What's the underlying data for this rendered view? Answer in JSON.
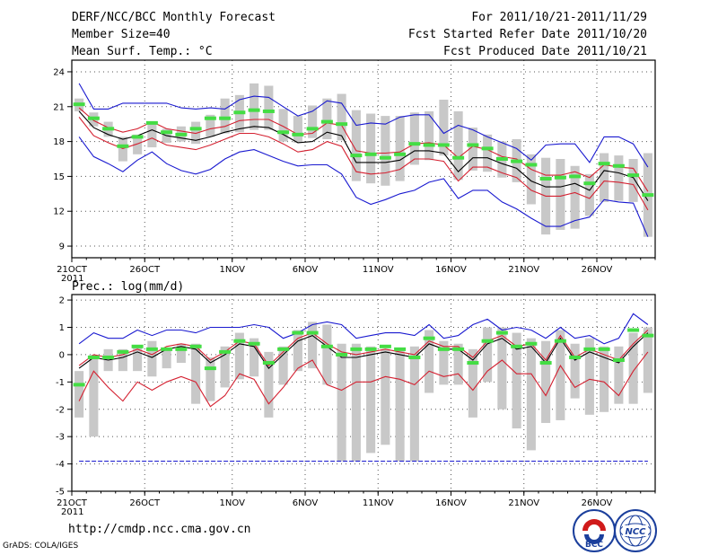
{
  "header": {
    "title": "DERF/NCC/BCC Monthly Forecast",
    "member_size": "Member Size=40",
    "variable": "Mean Surf. Temp.: °C",
    "period": "For 2011/10/21-2011/11/29",
    "started": "Fcst Started Refer Date 2011/10/20",
    "produced": "Fcst Produced Date 2011/10/21"
  },
  "footer": {
    "url": "http://cmdp.ncc.cma.gov.cn",
    "credit": "GrADS: COLA/IGES",
    "logo_left_text": "BCC",
    "logo_right_text": "NCC"
  },
  "colors": {
    "mean": "#000000",
    "spread": "#d42030",
    "extreme": "#1a1ad0",
    "box": "#c8c8c8",
    "median": "#44dd44",
    "grid": "#555555"
  },
  "chart_data": [
    {
      "type": "line",
      "title": "Mean Surf. Temp.: °C",
      "x_start": "2011-10-21",
      "x_count": 40,
      "xtick_labels": [
        "21OCT\n2011",
        "26OCT",
        "1NOV",
        "6NOV",
        "11NOV",
        "16NOV",
        "21NOV",
        "26NOV"
      ],
      "xtick_index": [
        0,
        5,
        11,
        16,
        21,
        26,
        31,
        36
      ],
      "ylim": [
        8,
        25
      ],
      "yticks": [
        9,
        12,
        15,
        18,
        21,
        24
      ],
      "grid": true,
      "series": [
        {
          "name": "ensemble max",
          "color": "#1a1ad0",
          "values": [
            23.0,
            20.8,
            20.8,
            21.3,
            21.3,
            21.3,
            21.3,
            20.9,
            20.8,
            20.9,
            20.8,
            21.6,
            21.9,
            21.8,
            21.0,
            20.2,
            20.6,
            21.5,
            21.3,
            19.4,
            19.6,
            19.5,
            20.1,
            20.3,
            20.3,
            18.7,
            19.4,
            19.0,
            18.4,
            17.9,
            17.4,
            16.4,
            17.7,
            17.8,
            17.8,
            16.2,
            18.4,
            18.4,
            17.8,
            15.8
          ]
        },
        {
          "name": "mean + spread",
          "color": "#d42030",
          "values": [
            20.9,
            19.8,
            19.2,
            18.8,
            19.1,
            19.7,
            19.1,
            18.9,
            18.7,
            19.1,
            19.3,
            19.8,
            19.9,
            19.9,
            19.3,
            18.6,
            18.7,
            19.6,
            19.4,
            17.2,
            17.0,
            17.0,
            17.1,
            17.8,
            17.9,
            17.7,
            16.6,
            17.6,
            17.3,
            16.7,
            16.5,
            15.6,
            15.1,
            15.1,
            15.4,
            14.9,
            16.0,
            15.8,
            15.7,
            13.7
          ]
        },
        {
          "name": "ensemble mean",
          "color": "#000000",
          "values": [
            20.6,
            19.2,
            18.6,
            18.2,
            18.5,
            19.0,
            18.5,
            18.3,
            18.1,
            18.4,
            18.8,
            19.1,
            19.3,
            19.2,
            18.6,
            17.9,
            18.0,
            18.8,
            18.5,
            16.2,
            16.2,
            16.2,
            16.4,
            17.2,
            17.2,
            17.0,
            15.4,
            16.6,
            16.6,
            16.1,
            15.7,
            14.6,
            14.1,
            14.1,
            14.4,
            13.8,
            15.5,
            15.3,
            14.9,
            12.9
          ]
        },
        {
          "name": "mean - spread",
          "color": "#d42030",
          "values": [
            20.1,
            18.5,
            17.9,
            17.4,
            17.8,
            18.3,
            17.7,
            17.5,
            17.3,
            17.7,
            18.2,
            18.7,
            18.7,
            18.4,
            17.8,
            17.1,
            17.3,
            18.0,
            17.6,
            15.4,
            15.2,
            15.3,
            15.6,
            16.5,
            16.5,
            16.3,
            14.6,
            15.8,
            15.8,
            15.3,
            14.9,
            13.8,
            13.3,
            13.3,
            13.6,
            13.1,
            14.6,
            14.5,
            14.3,
            12.1
          ]
        },
        {
          "name": "ensemble min",
          "color": "#1a1ad0",
          "values": [
            18.4,
            16.7,
            16.1,
            15.4,
            16.4,
            17.1,
            16.1,
            15.5,
            15.2,
            15.6,
            16.5,
            17.1,
            17.3,
            16.8,
            16.3,
            15.9,
            16.0,
            16.0,
            15.2,
            13.2,
            12.6,
            13.0,
            13.5,
            13.8,
            14.5,
            14.8,
            13.1,
            13.8,
            13.8,
            12.8,
            12.2,
            11.4,
            10.7,
            10.7,
            11.2,
            11.5,
            13.0,
            12.8,
            12.7,
            9.8
          ]
        }
      ],
      "boxes": [
        [
          20.6,
          21.7
        ],
        [
          19.3,
          20.5
        ],
        [
          18.4,
          19.7
        ],
        [
          16.3,
          18.4
        ],
        [
          16.9,
          18.6
        ],
        [
          17.5,
          19.6
        ],
        [
          17.9,
          19.1
        ],
        [
          18.0,
          19.3
        ],
        [
          17.8,
          19.7
        ],
        [
          18.4,
          20.3
        ],
        [
          18.7,
          21.7
        ],
        [
          18.8,
          22.0
        ],
        [
          19.0,
          23.0
        ],
        [
          19.0,
          22.8
        ],
        [
          18.0,
          20.8
        ],
        [
          17.9,
          20.2
        ],
        [
          18.3,
          21.1
        ],
        [
          18.2,
          21.7
        ],
        [
          18.1,
          22.1
        ],
        [
          14.6,
          20.7
        ],
        [
          14.4,
          20.4
        ],
        [
          14.2,
          20.2
        ],
        [
          14.6,
          20.2
        ],
        [
          16.0,
          20.5
        ],
        [
          16.4,
          20.6
        ],
        [
          16.8,
          21.6
        ],
        [
          14.7,
          20.6
        ],
        [
          15.5,
          19.2
        ],
        [
          15.4,
          18.6
        ],
        [
          14.9,
          18.0
        ],
        [
          14.5,
          18.2
        ],
        [
          12.6,
          16.9
        ],
        [
          10.0,
          16.6
        ],
        [
          10.4,
          16.5
        ],
        [
          10.5,
          15.9
        ],
        [
          11.6,
          15.2
        ],
        [
          12.8,
          17.0
        ],
        [
          12.9,
          16.8
        ],
        [
          12.8,
          16.5
        ],
        [
          9.8,
          17.0
        ]
      ],
      "medians": [
        21.2,
        20.0,
        19.1,
        17.6,
        18.4,
        19.6,
        18.8,
        18.6,
        19.1,
        20.0,
        20.0,
        20.5,
        20.7,
        20.6,
        18.8,
        18.6,
        19.1,
        19.7,
        19.5,
        16.8,
        16.9,
        16.6,
        16.9,
        17.8,
        17.7,
        17.7,
        16.6,
        17.7,
        17.4,
        16.5,
        16.3,
        16.0,
        14.8,
        14.9,
        15.0,
        14.4,
        16.1,
        15.9,
        15.1,
        13.4
      ]
    },
    {
      "type": "line",
      "title": "Prec.: log(mm/d)",
      "x_start": "2011-10-21",
      "x_count": 40,
      "xtick_labels": [
        "21OCT\n2011",
        "26OCT",
        "1NOV",
        "6NOV",
        "11NOV",
        "16NOV",
        "21NOV",
        "26NOV"
      ],
      "xtick_index": [
        0,
        5,
        11,
        16,
        21,
        26,
        31,
        36
      ],
      "ylim": [
        -5,
        2.2
      ],
      "yticks": [
        -5,
        -4,
        -3,
        -2,
        -1,
        0,
        1,
        2
      ],
      "grid": true,
      "series": [
        {
          "name": "ensemble max",
          "color": "#1a1ad0",
          "values": [
            0.4,
            0.8,
            0.6,
            0.6,
            0.9,
            0.7,
            0.9,
            0.9,
            0.8,
            1.0,
            1.0,
            1.0,
            1.1,
            1.0,
            0.6,
            0.8,
            1.1,
            1.2,
            1.1,
            0.6,
            0.7,
            0.8,
            0.8,
            0.7,
            1.1,
            0.6,
            0.7,
            1.1,
            1.3,
            0.9,
            1.0,
            0.9,
            0.6,
            1.0,
            0.6,
            0.7,
            0.4,
            0.6,
            1.5,
            1.1
          ]
        },
        {
          "name": "mean + spread",
          "color": "#d42030",
          "values": [
            -0.4,
            0.0,
            -0.1,
            0.0,
            0.2,
            0.0,
            0.3,
            0.4,
            0.3,
            -0.2,
            0.1,
            0.5,
            0.4,
            -0.4,
            0.1,
            0.6,
            0.8,
            0.4,
            0.1,
            0.0,
            0.1,
            0.2,
            0.1,
            0.0,
            0.5,
            0.3,
            0.3,
            -0.1,
            0.5,
            0.7,
            0.3,
            0.4,
            -0.2,
            0.7,
            -0.1,
            0.2,
            0.0,
            -0.2,
            0.4,
            0.9
          ]
        },
        {
          "name": "ensemble mean",
          "color": "#000000",
          "values": [
            -0.5,
            -0.1,
            -0.2,
            -0.1,
            0.1,
            -0.1,
            0.2,
            0.3,
            0.2,
            -0.3,
            0.0,
            0.4,
            0.3,
            -0.5,
            0.0,
            0.5,
            0.7,
            0.3,
            -0.1,
            -0.1,
            0.0,
            0.1,
            0.0,
            -0.1,
            0.4,
            0.2,
            0.2,
            -0.2,
            0.4,
            0.6,
            0.2,
            0.3,
            -0.3,
            0.6,
            -0.2,
            0.1,
            -0.1,
            -0.3,
            0.3,
            0.8
          ]
        },
        {
          "name": "mean - spread",
          "color": "#d42030",
          "values": [
            -1.7,
            -0.6,
            -1.2,
            -1.7,
            -1.0,
            -1.3,
            -1.0,
            -0.8,
            -1.0,
            -1.9,
            -1.5,
            -0.7,
            -0.9,
            -1.8,
            -1.2,
            -0.5,
            -0.2,
            -1.1,
            -1.3,
            -1.0,
            -1.0,
            -0.8,
            -0.9,
            -1.1,
            -0.6,
            -0.8,
            -0.7,
            -1.3,
            -0.6,
            -0.2,
            -0.7,
            -0.7,
            -1.5,
            -0.4,
            -1.2,
            -0.9,
            -1.0,
            -1.5,
            -0.6,
            0.1
          ]
        },
        {
          "name": "ensemble min",
          "color": "#1a1ad0",
          "values": [
            -3.9,
            -3.9,
            -3.9,
            -3.9,
            -3.9,
            -3.9,
            -3.9,
            -3.9,
            -3.9,
            -3.9,
            -3.9,
            -3.9,
            -3.9,
            -3.9,
            -3.9,
            -3.9,
            -3.9,
            -3.9,
            -3.9,
            -3.9,
            -3.9,
            -3.9,
            -3.9,
            -3.9,
            -3.9,
            -3.9,
            -3.9,
            -3.9,
            -3.9,
            -3.9,
            -3.9,
            -3.9,
            -3.9,
            -3.9,
            -3.9,
            -3.9,
            -3.9,
            -3.9,
            -3.9,
            -3.9
          ]
        }
      ],
      "boxes": [
        [
          -2.3,
          -0.6
        ],
        [
          -3.0,
          0.0
        ],
        [
          -0.6,
          0.2
        ],
        [
          -0.6,
          0.2
        ],
        [
          -0.6,
          0.3
        ],
        [
          -0.8,
          0.5
        ],
        [
          -0.5,
          0.2
        ],
        [
          -0.3,
          0.4
        ],
        [
          -1.8,
          0.4
        ],
        [
          -1.7,
          -0.1
        ],
        [
          -1.2,
          0.3
        ],
        [
          -0.9,
          0.8
        ],
        [
          -0.8,
          0.6
        ],
        [
          -2.3,
          0.1
        ],
        [
          -1.1,
          0.3
        ],
        [
          -0.6,
          0.9
        ],
        [
          -0.5,
          1.2
        ],
        [
          -1.1,
          1.1
        ],
        [
          -3.9,
          0.4
        ],
        [
          -3.9,
          0.4
        ],
        [
          -3.6,
          0.3
        ],
        [
          -3.3,
          0.2
        ],
        [
          -3.9,
          0.2
        ],
        [
          -3.9,
          0.3
        ],
        [
          -1.4,
          0.9
        ],
        [
          -1.1,
          0.5
        ],
        [
          -1.1,
          0.4
        ],
        [
          -2.3,
          0.2
        ],
        [
          -1.0,
          1.0
        ],
        [
          -2.0,
          1.0
        ],
        [
          -2.7,
          0.8
        ],
        [
          -3.5,
          0.6
        ],
        [
          -2.5,
          0.5
        ],
        [
          -2.4,
          0.9
        ],
        [
          -1.6,
          0.4
        ],
        [
          -2.2,
          0.6
        ],
        [
          -2.1,
          0.3
        ],
        [
          -1.8,
          0.3
        ],
        [
          -1.8,
          0.8
        ],
        [
          -1.4,
          1.0
        ]
      ],
      "medians": [
        -1.1,
        -0.1,
        -0.1,
        0.1,
        0.3,
        0.2,
        0.2,
        0.2,
        0.3,
        -0.5,
        0.1,
        0.5,
        0.4,
        -0.3,
        0.2,
        0.8,
        0.8,
        0.3,
        0.0,
        0.2,
        0.2,
        0.3,
        0.2,
        -0.1,
        0.6,
        0.2,
        0.2,
        -0.3,
        0.5,
        0.8,
        0.3,
        0.4,
        -0.3,
        0.5,
        -0.1,
        0.2,
        0.2,
        -0.2,
        0.9,
        0.7
      ]
    }
  ]
}
